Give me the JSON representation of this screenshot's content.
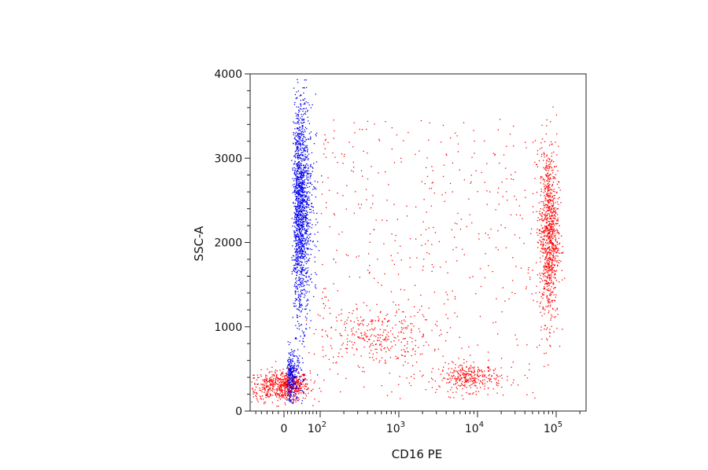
{
  "chart_data": {
    "type": "scatter",
    "title": "",
    "xlabel": "CD16 PE",
    "ylabel": "SSC-A",
    "x_scale": "biexponential",
    "ylim": [
      0,
      4000
    ],
    "xlim": [
      -60,
      200000
    ],
    "grid": false,
    "legend": "none",
    "y_ticks": [
      {
        "value": 0,
        "label": "0"
      },
      {
        "value": 1000,
        "label": "1000"
      },
      {
        "value": 2000,
        "label": "2000"
      },
      {
        "value": 3000,
        "label": "3000"
      },
      {
        "value": 4000,
        "label": "4000"
      }
    ],
    "x_ticks": [
      {
        "value": 0,
        "label": "0",
        "exp": ""
      },
      {
        "value": 100,
        "label": "10",
        "exp": "2"
      },
      {
        "value": 1000,
        "label": "10",
        "exp": "3"
      },
      {
        "value": 10000,
        "label": "10",
        "exp": "4"
      },
      {
        "value": 100000,
        "label": "10",
        "exp": "5"
      }
    ],
    "series": [
      {
        "color": "#ff0000",
        "clusters": [
          {
            "x_center": 0,
            "y_center": 300,
            "x_spread_decades": 0.25,
            "y_spread": 90,
            "points": 700
          },
          {
            "x_center": 500,
            "y_center": 900,
            "x_spread_decades": 0.35,
            "y_spread": 170,
            "points": 280
          },
          {
            "x_center": 8000,
            "y_center": 400,
            "x_spread_decades": 0.2,
            "y_spread": 80,
            "points": 300
          },
          {
            "x_center": 80000,
            "y_center": 2100,
            "x_spread_decades": 0.06,
            "y_spread": 520,
            "points": 950
          },
          {
            "x_range": [
              100,
              70000
            ],
            "y_range": [
              150,
              3500
            ],
            "points": 500
          }
        ]
      },
      {
        "color": "#0000ee",
        "clusters": [
          {
            "x_center": 45,
            "y_center": 2400,
            "x_spread_decades": 0.12,
            "y_spread": 650,
            "points": 1600
          },
          {
            "x_center": 20,
            "y_center": 400,
            "x_spread_decades": 0.2,
            "y_spread": 150,
            "points": 300
          }
        ]
      }
    ]
  }
}
